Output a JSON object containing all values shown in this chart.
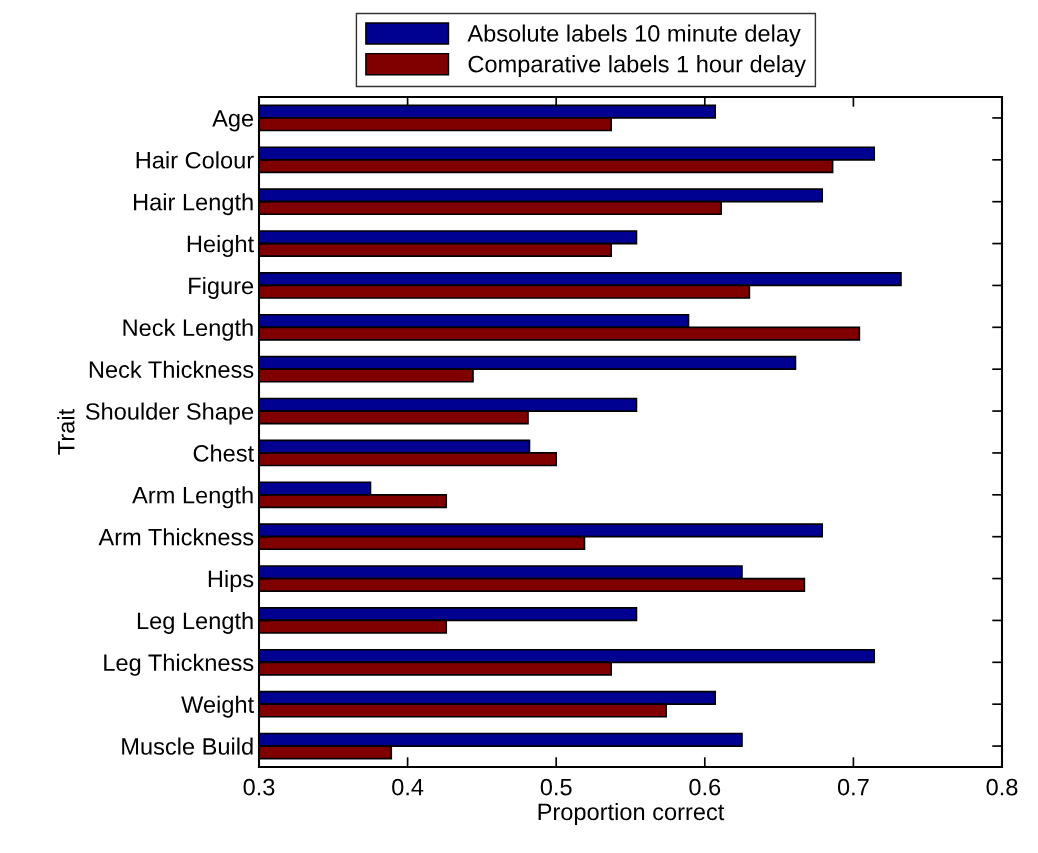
{
  "chart_data": {
    "type": "bar",
    "orientation": "horizontal",
    "xlabel": "Proportion correct",
    "ylabel": "Trait",
    "categories": [
      "Age",
      "Hair Colour",
      "Hair Length",
      "Height",
      "Figure",
      "Neck Length",
      "Neck Thickness",
      "Shoulder Shape",
      "Chest",
      "Arm Length",
      "Arm Thickness",
      "Hips",
      "Leg Length",
      "Leg Thickness",
      "Weight",
      "Muscle Build"
    ],
    "series": [
      {
        "name": "Absolute labels 10 minute delay",
        "color": "#000091",
        "values": [
          0.607,
          0.714,
          0.679,
          0.554,
          0.732,
          0.589,
          0.661,
          0.554,
          0.482,
          0.375,
          0.679,
          0.625,
          0.554,
          0.714,
          0.607,
          0.625
        ]
      },
      {
        "name": "Comparative labels 1 hour delay",
        "color": "#800000",
        "values": [
          0.537,
          0.686,
          0.611,
          0.537,
          0.63,
          0.704,
          0.444,
          0.481,
          0.5,
          0.426,
          0.519,
          0.667,
          0.426,
          0.537,
          0.574,
          0.389
        ]
      }
    ],
    "xlim": [
      0.3,
      0.8
    ],
    "xticks": [
      0.3,
      0.4,
      0.5,
      0.6,
      0.7,
      0.8
    ],
    "grid": false,
    "legend": "top"
  }
}
